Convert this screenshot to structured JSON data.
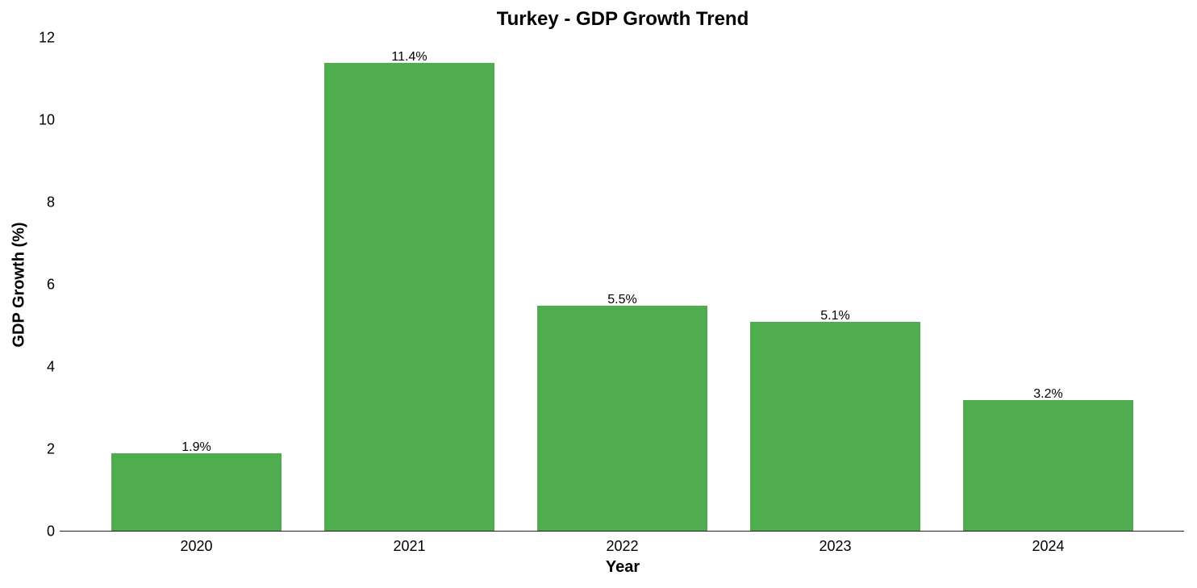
{
  "chart_data": {
    "type": "bar",
    "title": "Turkey - GDP Growth Trend",
    "xlabel": "Year",
    "ylabel": "GDP Growth (%)",
    "categories": [
      "2020",
      "2021",
      "2022",
      "2023",
      "2024"
    ],
    "values": [
      1.9,
      11.4,
      5.5,
      5.1,
      3.2
    ],
    "value_labels": [
      "1.9%",
      "11.4%",
      "5.5%",
      "5.1%",
      "3.2%"
    ],
    "ylim": [
      0,
      12
    ],
    "yticks": [
      "0",
      "2",
      "4",
      "6",
      "8",
      "10",
      "12"
    ],
    "grid": false,
    "legend": null,
    "bar_color": "#4fad4f"
  }
}
